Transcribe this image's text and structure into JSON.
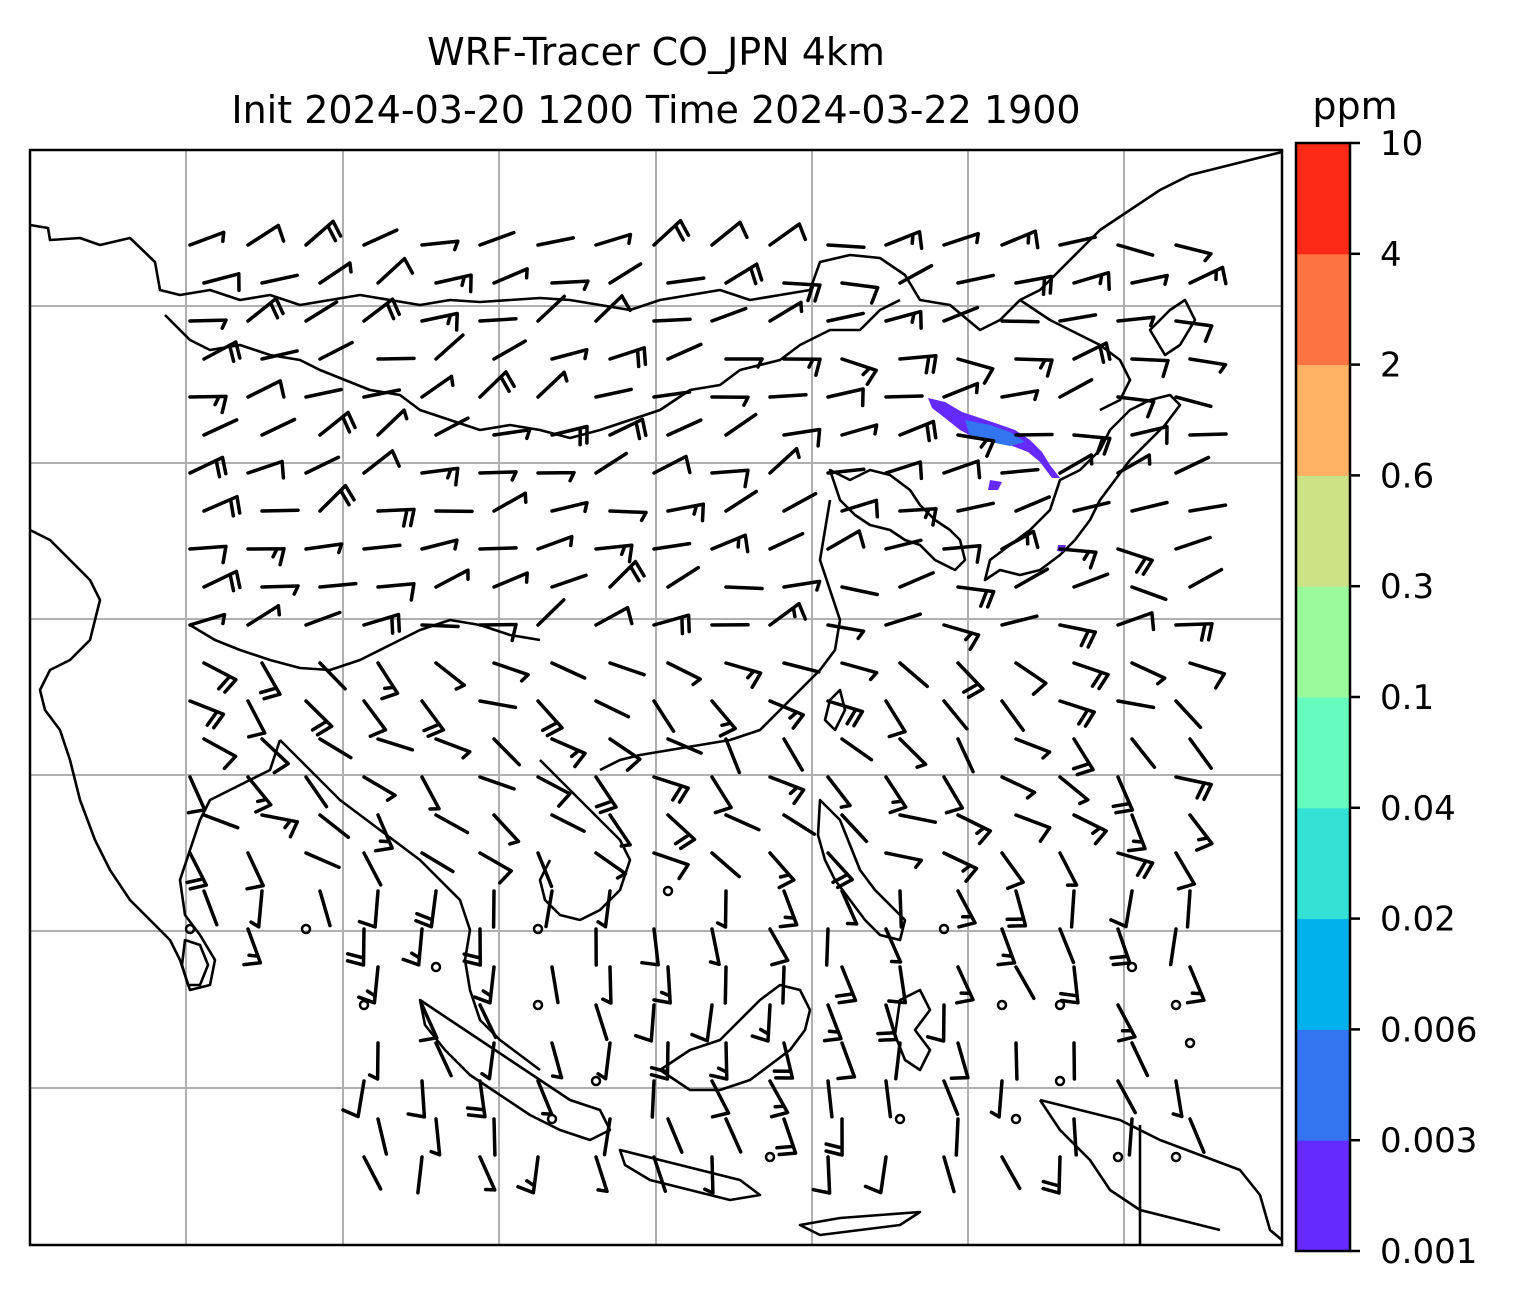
{
  "title_line1": "WRF-Tracer CO_JPN 4km",
  "title_line2": "Init 2024-03-20 1200 Time 2024-03-22 1900",
  "colorbar": {
    "units": "ppm",
    "levels": [
      "0.001",
      "0.003",
      "0.006",
      "0.02",
      "0.04",
      "0.1",
      "0.3",
      "0.6",
      "2",
      "4",
      "10"
    ],
    "colors": [
      "#6629ff",
      "#3374f1",
      "#00b1ec",
      "#33e2d4",
      "#66fcbe",
      "#99fb9a",
      "#cde287",
      "#ffb164",
      "#ff7442",
      "#ff2918"
    ]
  },
  "map": {
    "type": "wind barbs and tracer concentration map",
    "gridlines": true,
    "tracer_plume_color": "#6629ff"
  }
}
